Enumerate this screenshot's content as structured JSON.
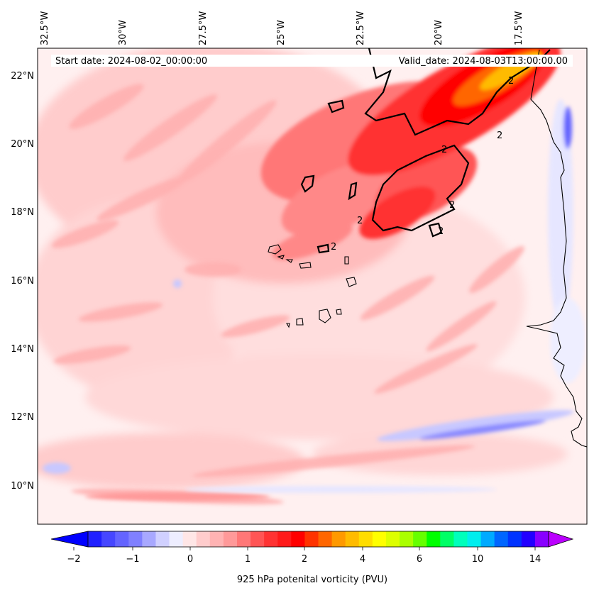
{
  "header": {
    "start_date": "Start date: 2024-08-02_00:00:00",
    "valid_date": "Valid_date: 2024-08-03T13:00:00.00"
  },
  "map": {
    "lon_labels": [
      "32.5°W",
      "30°W",
      "27.5°W",
      "25°W",
      "22.5°W",
      "20°W",
      "17.5°W"
    ],
    "lat_labels": [
      "22°N",
      "20°N",
      "18°N",
      "16°N",
      "14°N",
      "12°N",
      "10°N"
    ],
    "contour_label": "2"
  },
  "colorbar": {
    "tick_labels": [
      "−2",
      "−1",
      "0",
      "1",
      "2",
      "4",
      "6",
      "10",
      "14"
    ],
    "title": "925 hPa potenital vorticity (PVU)",
    "colors": [
      "#0000ff",
      "#2020ff",
      "#4646ff",
      "#6464ff",
      "#8080ff",
      "#a8a8ff",
      "#d0d0ff",
      "#eeeeff",
      "#ffe6e6",
      "#ffcccc",
      "#ffb3b3",
      "#ff9999",
      "#ff7777",
      "#ff5555",
      "#ff3333",
      "#ff1a1a",
      "#ff0000",
      "#ff3300",
      "#ff6600",
      "#ff9900",
      "#ffbb00",
      "#ffdd00",
      "#ffff00",
      "#ddff00",
      "#aaff00",
      "#66ff00",
      "#00ff00",
      "#00ff66",
      "#00ffbb",
      "#00eeee",
      "#00aaff",
      "#0066ff",
      "#0033ff",
      "#2200ff",
      "#8800ff",
      "#bb00ff"
    ]
  }
}
